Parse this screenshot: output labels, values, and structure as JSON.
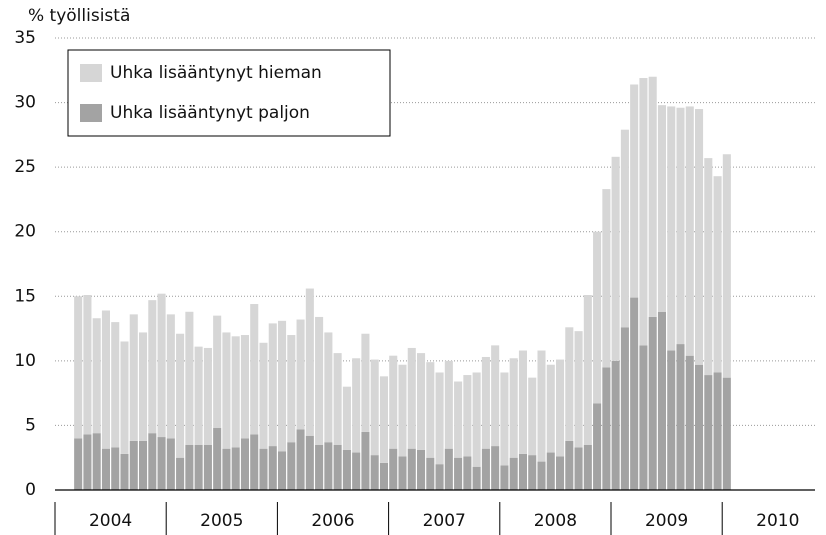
{
  "chart_data": {
    "type": "stacked-bar",
    "y_label": "% työllisistä",
    "categories": [
      null,
      null,
      null,
      null,
      null,
      null,
      null,
      null,
      null,
      null,
      null,
      null,
      null,
      null,
      null,
      null,
      null,
      null,
      null,
      null,
      null,
      null,
      null,
      null,
      null,
      null,
      null,
      null,
      null,
      null,
      null,
      null,
      null,
      null,
      null,
      null,
      null,
      null,
      null,
      null,
      null,
      null,
      null,
      null,
      null,
      null,
      null,
      null,
      null,
      null,
      null,
      null,
      null,
      null,
      null,
      null,
      null,
      null,
      null,
      null,
      null,
      null,
      null,
      null,
      null,
      null,
      null,
      null,
      null,
      null,
      null
    ],
    "groups": [
      "2004",
      "2005",
      "2006",
      "2007",
      "2008",
      "2009",
      "2010"
    ],
    "series": [
      {
        "name": "Uhka lisääntynyt paljon",
        "color": "#a3a3a3",
        "values": [
          4.0,
          4.3,
          4.4,
          3.2,
          3.3,
          2.8,
          3.8,
          3.8,
          4.4,
          4.1,
          4.0,
          2.5,
          3.5,
          3.5,
          3.5,
          4.8,
          3.2,
          3.3,
          4.0,
          4.3,
          3.2,
          3.4,
          3.0,
          3.7,
          4.7,
          4.2,
          3.5,
          3.7,
          3.5,
          3.1,
          2.9,
          4.5,
          2.7,
          2.1,
          3.2,
          2.6,
          3.2,
          3.1,
          2.5,
          2.0,
          3.2,
          2.5,
          2.6,
          1.8,
          3.2,
          3.4,
          1.9,
          2.5,
          2.8,
          2.7,
          2.2,
          2.9,
          2.6,
          3.8,
          3.3,
          3.5,
          6.7,
          9.5,
          10.0,
          12.6,
          14.9,
          11.2,
          13.4,
          13.8,
          10.8,
          11.3,
          10.4,
          9.7,
          8.9,
          9.1,
          8.7
        ]
      },
      {
        "name": "Uhka lisääntynyt hieman",
        "color": "#d6d6d6",
        "values": [
          11.0,
          10.8,
          8.9,
          10.7,
          9.7,
          8.7,
          9.8,
          8.4,
          10.3,
          11.1,
          9.6,
          9.6,
          10.3,
          7.6,
          7.5,
          8.7,
          9.0,
          8.6,
          8.0,
          10.1,
          8.2,
          9.5,
          10.1,
          8.3,
          8.5,
          11.4,
          9.9,
          8.5,
          7.1,
          4.9,
          7.3,
          7.6,
          7.4,
          6.7,
          7.2,
          7.1,
          7.8,
          7.5,
          7.4,
          7.1,
          6.8,
          5.9,
          6.3,
          7.3,
          7.1,
          7.8,
          7.2,
          7.7,
          8.0,
          6.0,
          8.6,
          6.8,
          7.5,
          8.8,
          9.0,
          11.6,
          13.3,
          13.8,
          15.8,
          15.3,
          16.5,
          20.7,
          18.6,
          16.0,
          18.9,
          18.3,
          19.3,
          19.8,
          16.8,
          15.2,
          17.3
        ]
      }
    ],
    "ylim": [
      0,
      35
    ],
    "yticks": [
      0,
      5,
      10,
      15,
      20,
      25,
      30,
      35
    ],
    "grid": true,
    "legend": "upper left"
  }
}
